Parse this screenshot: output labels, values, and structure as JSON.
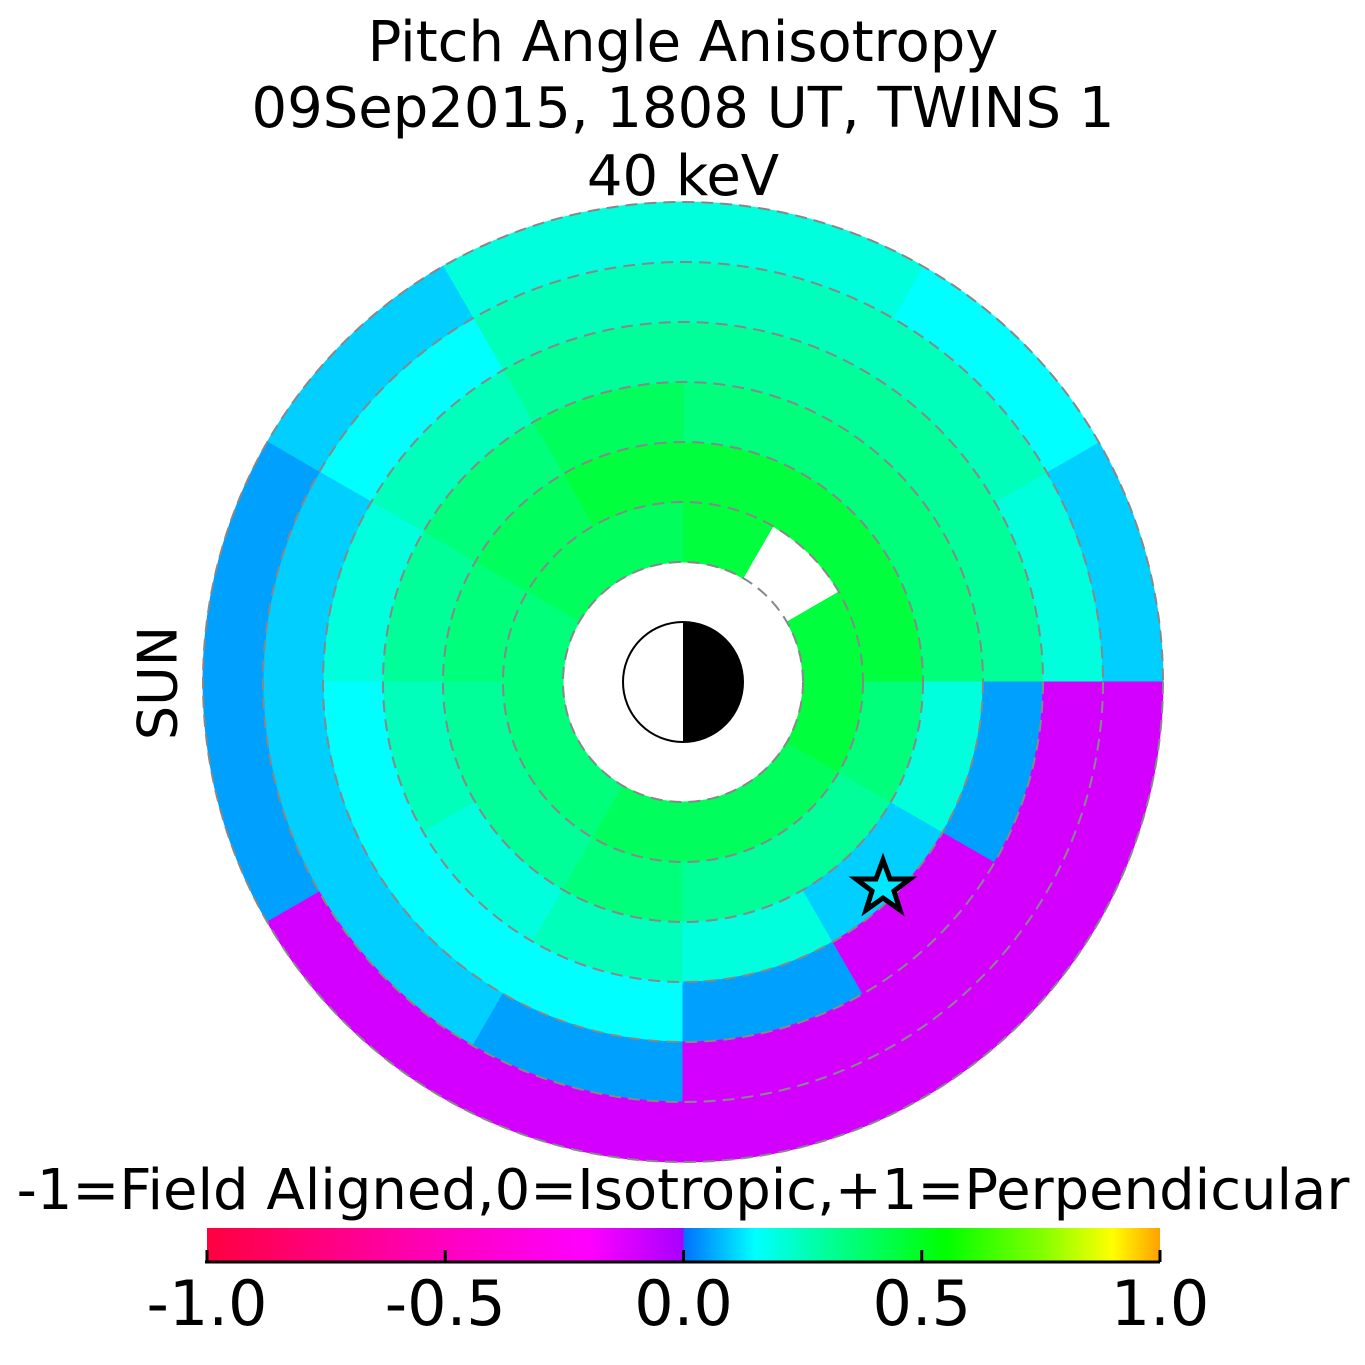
{
  "chart_data": {
    "type": "polar_heatmap",
    "title": [
      "Pitch Angle Anisotropy",
      "09Sep2015, 1808 UT,  TWINS 1",
      "40 keV"
    ],
    "side_label": "SUN",
    "side_label_color": "#f5a000",
    "r_edges": [
      2,
      3,
      4,
      5,
      6,
      7,
      8
    ],
    "theta_edges": [
      0,
      30,
      60,
      90,
      120,
      150,
      180,
      210,
      240,
      270,
      300,
      330,
      360
    ],
    "grid": true,
    "values": [
      [
        0.45,
        0.45,
        0.35,
        0.3,
        0.2,
        0.1
      ],
      [
        null,
        0.45,
        0.35,
        0.3,
        0.25,
        0.15
      ],
      [
        0.45,
        0.45,
        0.35,
        0.3,
        0.25,
        0.2
      ],
      [
        0.4,
        0.45,
        0.4,
        0.3,
        0.25,
        0.2
      ],
      [
        0.4,
        0.4,
        0.35,
        0.25,
        0.15,
        0.1
      ],
      [
        0.35,
        0.35,
        0.3,
        0.2,
        0.1,
        0.05
      ],
      [
        0.35,
        0.3,
        0.25,
        0.15,
        0.1,
        0.05
      ],
      [
        0.35,
        0.3,
        0.2,
        0.15,
        0.1,
        -0.1
      ],
      [
        0.4,
        0.35,
        0.25,
        0.15,
        0.05,
        -0.1
      ],
      [
        0.4,
        0.3,
        0.2,
        0.05,
        -0.1,
        -0.1
      ],
      [
        0.4,
        0.3,
        0.1,
        -0.1,
        -0.1,
        -0.1
      ],
      [
        0.45,
        0.35,
        0.2,
        0.05,
        -0.1,
        -0.1
      ]
    ],
    "colorbar_label": "-1=Field Aligned,0=Isotropic,+1=Perpendicular",
    "clim": [
      -1,
      1
    ],
    "cticks": [
      {
        "value": -1,
        "label": "-1.0"
      },
      -0.5,
      {
        "value": 0,
        "label": "0.0"
      },
      0.5,
      {
        "value": 1,
        "label": "1.0"
      }
    ],
    "colormap": [
      {
        "value": -1,
        "color": "#ff0040"
      },
      {
        "value": -0.5,
        "color": "#ff00c0"
      },
      {
        "value": -0.2,
        "color": "#ff00ff"
      },
      {
        "value": 0,
        "color": "#a800ff"
      },
      {
        "value": 0,
        "color": "#0070ff"
      },
      {
        "value": 0.15,
        "color": "#00ffff"
      },
      {
        "value": 0.3,
        "color": "#00ff99"
      },
      {
        "value": 0.55,
        "color": "#00ff00"
      },
      {
        "value": 0.75,
        "color": "#80ff00"
      },
      {
        "value": 0.9,
        "color": "#ffff00"
      },
      {
        "value": 1,
        "color": "#ffa000"
      }
    ]
  }
}
